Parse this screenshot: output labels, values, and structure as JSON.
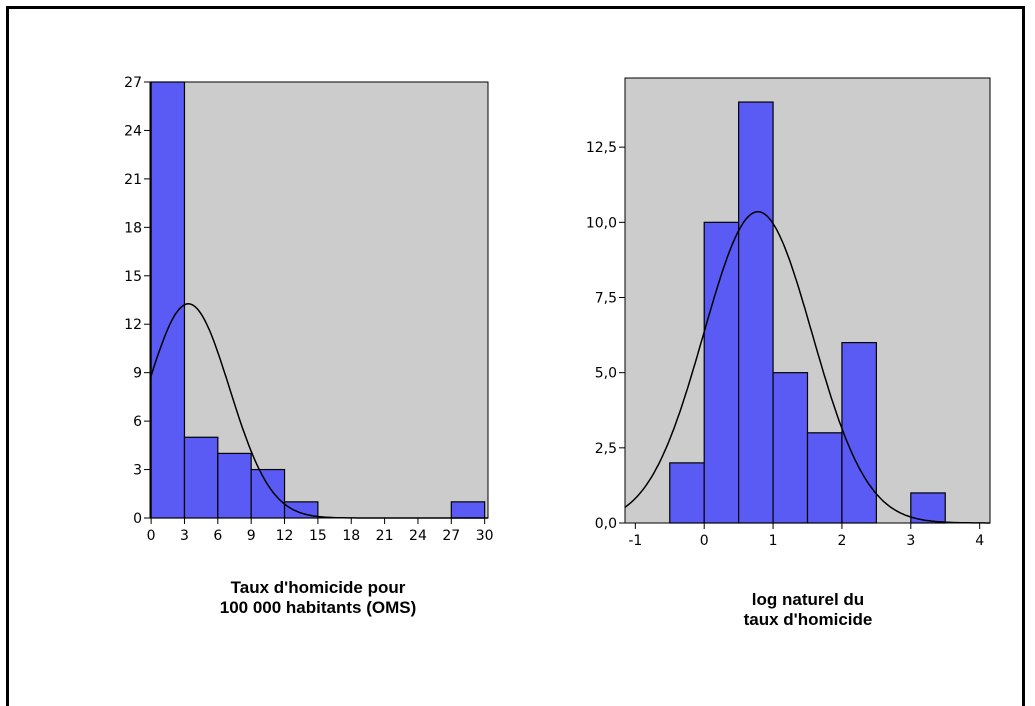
{
  "colors": {
    "plot_bg": "#cccccc",
    "bar_fill": "#5a5af5",
    "bar_stroke": "#000000",
    "curve": "#000000"
  },
  "chart_data": [
    {
      "type": "bar",
      "xlabel_lines": [
        "Taux d'homicide pour",
        "100 000 habitants (OMS)"
      ],
      "bin_edges": [
        0,
        3,
        6,
        9,
        12,
        15,
        18,
        21,
        24,
        27,
        30
      ],
      "values": [
        27,
        5,
        4,
        3,
        1,
        0,
        0,
        0,
        0,
        1
      ],
      "xticks": [
        "0",
        "3",
        "6",
        "9",
        "12",
        "15",
        "18",
        "21",
        "24",
        "27",
        "30"
      ],
      "yticks": [
        "0",
        "3",
        "6",
        "9",
        "12",
        "15",
        "18",
        "21",
        "24",
        "27"
      ],
      "xlim": [
        -0.1,
        30.3
      ],
      "ylim": [
        0,
        27
      ],
      "normal_curve": {
        "mean": 3.35,
        "sd": 3.7,
        "n": 41,
        "binwidth": 3
      }
    },
    {
      "type": "bar",
      "xlabel_lines": [
        "log naturel du",
        "taux d'homicide"
      ],
      "bin_edges": [
        -0.5,
        0,
        0.5,
        1,
        1.5,
        2,
        2.5,
        3,
        3.5
      ],
      "values": [
        2,
        10,
        14,
        5,
        3,
        6,
        0,
        1
      ],
      "xticks": [
        "-1",
        "0",
        "1",
        "2",
        "3",
        "4"
      ],
      "xtick_values": [
        -1,
        0,
        1,
        2,
        3,
        4
      ],
      "yticks": [
        "0,0",
        "2,5",
        "5,0",
        "7,5",
        "10,0",
        "12,5"
      ],
      "ytick_values": [
        0,
        2.5,
        5,
        7.5,
        10,
        12.5
      ],
      "xlim": [
        -1.15,
        4.15
      ],
      "ylim": [
        0,
        14.8
      ],
      "normal_curve": {
        "mean": 0.78,
        "sd": 0.79,
        "n": 41,
        "binwidth": 0.5
      }
    }
  ]
}
